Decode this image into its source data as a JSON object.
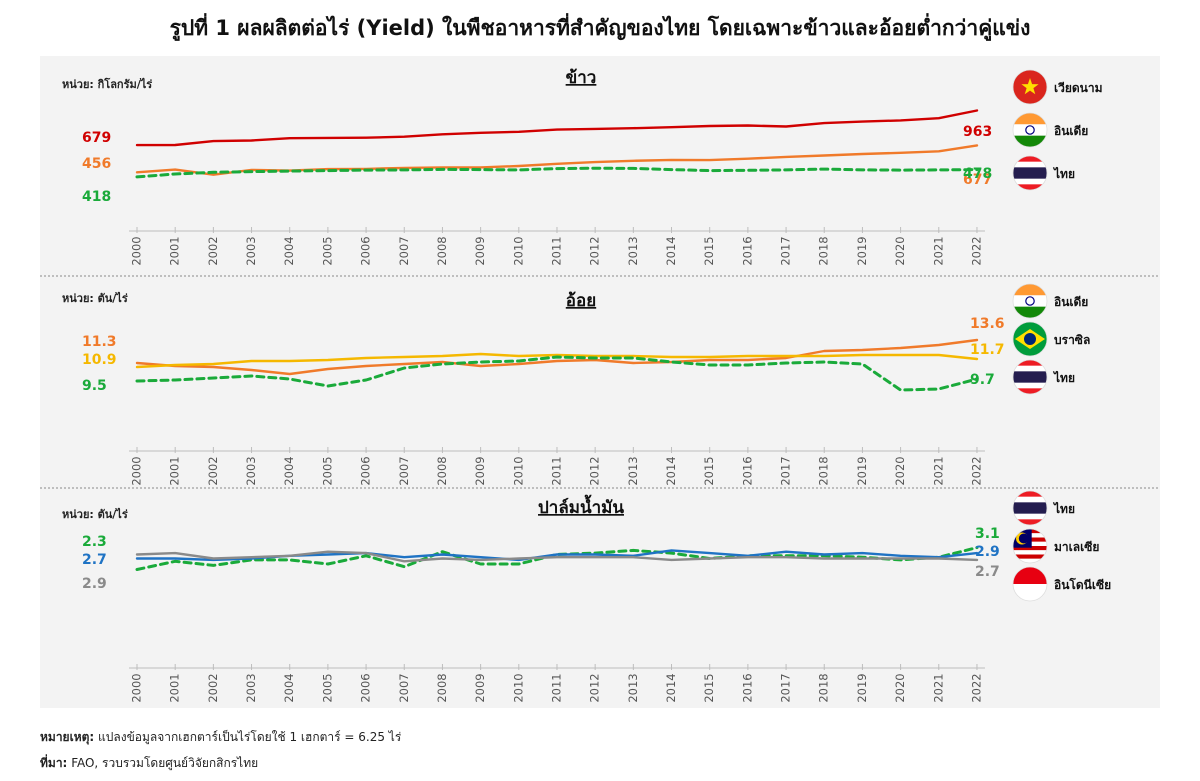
{
  "title": "รูปที่ 1 ผลผลิตต่อไร่ (Yield) ในพืชอาหารที่สำคัญของไทย โดยเฉพาะข้าวและอ้อยต่ำกว่าคู่แข่ง",
  "note": {
    "label": "หมายเหตุ:",
    "text": "แปลงข้อมูลจากเฮกตาร์เป็นไร่โดยใช้ 1 เฮกตาร์ = 6.25 ไร่"
  },
  "source": {
    "label": "ที่มา:",
    "text": "FAO, รวบรวมโดยศูนย์วิจัยกสิกรไทย"
  },
  "colors": {
    "red": "#d00000",
    "orange": "#f07a2a",
    "yellow": "#f5b800",
    "green": "#1aaa3a",
    "blue": "#1f73c4",
    "gray": "#8a8a8a"
  },
  "chart_data": [
    {
      "type": "line",
      "title": "ข้าว",
      "unit": "หน่วย: กิโลกรัม/ไร่",
      "x": [
        2000,
        2001,
        2002,
        2003,
        2004,
        2005,
        2006,
        2007,
        2008,
        2009,
        2010,
        2011,
        2012,
        2013,
        2014,
        2015,
        2016,
        2017,
        2018,
        2019,
        2020,
        2021,
        2022
      ],
      "ylim": [
        360,
        1000
      ],
      "series": [
        {
          "name": "เวียดนาม",
          "icon": "vietnam-flag",
          "color": "#d00000",
          "dash": false,
          "start_label": "679",
          "end_label": "963",
          "values": [
            679,
            680,
            712,
            717,
            736,
            738,
            740,
            748,
            768,
            780,
            788,
            806,
            812,
            818,
            826,
            836,
            840,
            832,
            860,
            872,
            882,
            900,
            963
          ]
        },
        {
          "name": "อินเดีย",
          "icon": "india-flag",
          "color": "#f07a2a",
          "dash": false,
          "start_label": "456",
          "end_label": "677",
          "values": [
            456,
            478,
            436,
            476,
            470,
            482,
            484,
            492,
            496,
            496,
            508,
            526,
            540,
            550,
            558,
            556,
            568,
            582,
            594,
            606,
            616,
            628,
            677
          ]
        },
        {
          "name": "ไทย",
          "icon": "thailand-flag",
          "color": "#1aaa3a",
          "dash": true,
          "start_label": "418",
          "end_label": "478",
          "values": [
            418,
            442,
            456,
            462,
            466,
            470,
            474,
            476,
            480,
            478,
            476,
            486,
            490,
            488,
            478,
            470,
            472,
            476,
            482,
            476,
            474,
            476,
            478
          ]
        }
      ]
    },
    {
      "type": "line",
      "title": "อ้อย",
      "unit": "หน่วย: ตัน/ไร่",
      "x": [
        2000,
        2001,
        2002,
        2003,
        2004,
        2005,
        2006,
        2007,
        2008,
        2009,
        2010,
        2011,
        2012,
        2013,
        2014,
        2015,
        2016,
        2017,
        2018,
        2019,
        2020,
        2021,
        2022
      ],
      "ylim": [
        7.5,
        14.5
      ],
      "series": [
        {
          "name": "อินเดีย",
          "icon": "india-flag",
          "color": "#f07a2a",
          "dash": false,
          "start_label": "11.3",
          "end_label": "13.6",
          "values": [
            11.3,
            11.0,
            10.9,
            10.6,
            10.2,
            10.7,
            11.0,
            11.2,
            11.4,
            11.0,
            11.2,
            11.5,
            11.6,
            11.3,
            11.4,
            11.6,
            11.6,
            11.8,
            12.5,
            12.6,
            12.8,
            13.1,
            13.6
          ]
        },
        {
          "name": "บราซิล",
          "icon": "brazil-flag",
          "color": "#f5b800",
          "dash": false,
          "start_label": "10.9",
          "end_label": "11.7",
          "values": [
            10.9,
            11.1,
            11.2,
            11.5,
            11.5,
            11.6,
            11.8,
            11.9,
            12.0,
            12.2,
            12.0,
            12.1,
            12.0,
            12.0,
            11.9,
            11.9,
            12.0,
            12.0,
            12.0,
            12.1,
            12.1,
            12.1,
            11.7
          ]
        },
        {
          "name": "ไทย",
          "icon": "thailand-flag",
          "color": "#1aaa3a",
          "dash": true,
          "start_label": "9.5",
          "end_label": "9.7",
          "values": [
            9.5,
            9.6,
            9.8,
            10.0,
            9.7,
            9.0,
            9.6,
            10.8,
            11.2,
            11.4,
            11.5,
            11.9,
            11.8,
            11.8,
            11.4,
            11.1,
            11.1,
            11.3,
            11.4,
            11.2,
            8.6,
            8.7,
            9.7
          ]
        }
      ]
    },
    {
      "type": "line",
      "title": "ปาล์มน้ำมัน",
      "unit": "หน่วย: ตัน/ไร่",
      "x": [
        2000,
        2001,
        2002,
        2003,
        2004,
        2005,
        2006,
        2007,
        2008,
        2009,
        2010,
        2011,
        2012,
        2013,
        2014,
        2015,
        2016,
        2017,
        2018,
        2019,
        2020,
        2021,
        2022
      ],
      "ylim": [
        1.4,
        3.6
      ],
      "series": [
        {
          "name": "ไทย",
          "icon": "thailand-flag",
          "color": "#1aaa3a",
          "dash": true,
          "start_label": "2.3",
          "end_label": "3.1",
          "values": [
            2.3,
            2.6,
            2.45,
            2.65,
            2.65,
            2.5,
            2.8,
            2.4,
            2.95,
            2.5,
            2.5,
            2.85,
            2.9,
            3.0,
            2.9,
            2.7,
            2.8,
            2.8,
            2.8,
            2.75,
            2.65,
            2.75,
            3.1
          ]
        },
        {
          "name": "มาเลเซีย",
          "icon": "malaysia-flag",
          "color": "#1f73c4",
          "dash": false,
          "start_label": "2.7",
          "end_label": "2.9",
          "values": [
            2.7,
            2.7,
            2.65,
            2.7,
            2.8,
            2.85,
            2.9,
            2.75,
            2.85,
            2.75,
            2.65,
            2.85,
            2.85,
            2.8,
            3.0,
            2.9,
            2.8,
            2.95,
            2.85,
            2.9,
            2.8,
            2.75,
            2.9
          ]
        },
        {
          "name": "อินโดนีเซีย",
          "icon": "indonesia-flag",
          "color": "#8a8a8a",
          "dash": false,
          "start_label": "2.9",
          "end_label": "2.7",
          "values": [
            2.85,
            2.9,
            2.7,
            2.75,
            2.8,
            2.95,
            2.9,
            2.6,
            2.7,
            2.65,
            2.7,
            2.75,
            2.75,
            2.75,
            2.65,
            2.7,
            2.75,
            2.75,
            2.7,
            2.7,
            2.7,
            2.7,
            2.65
          ]
        }
      ]
    }
  ]
}
